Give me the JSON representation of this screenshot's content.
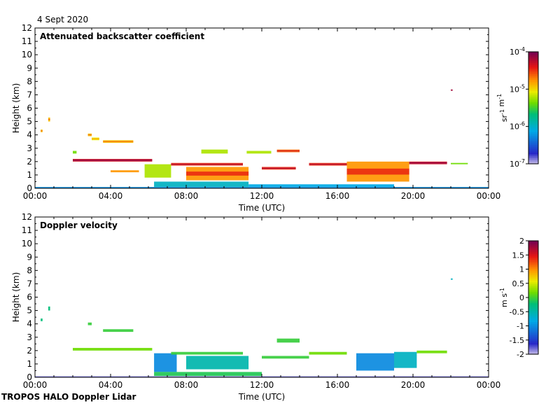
{
  "date": "4 Sept 2020",
  "footer": "TROPOS HALO Doppler Lidar",
  "chart_data": [
    {
      "type": "heatmap",
      "title": "Attenuated backscatter coefficient",
      "xlabel": "Time (UTC)",
      "ylabel": "Height (km)",
      "x_ticks": [
        "00:00",
        "04:00",
        "08:00",
        "12:00",
        "16:00",
        "20:00",
        "00:00"
      ],
      "x_range_hours": [
        0,
        24
      ],
      "y_ticks": [
        0,
        1,
        2,
        3,
        4,
        5,
        6,
        7,
        8,
        9,
        10,
        11,
        12
      ],
      "ylim": [
        0,
        12
      ],
      "colorbar": {
        "scale": "log",
        "range": [
          1e-07,
          0.0001
        ],
        "tick_labels": [
          "10-4",
          "10-5",
          "10-6",
          "10-7"
        ],
        "unit": "sr-1 m-1"
      },
      "features": [
        {
          "t0": 0.0,
          "t1": 24.0,
          "h0": 0.0,
          "h1": 0.1,
          "level": 0.25
        },
        {
          "t0": 0.3,
          "t1": 0.4,
          "h0": 4.2,
          "h1": 4.4,
          "level": 0.7
        },
        {
          "t0": 0.7,
          "t1": 0.8,
          "h0": 5.0,
          "h1": 5.3,
          "level": 0.7
        },
        {
          "t0": 2.0,
          "t1": 2.2,
          "h0": 2.6,
          "h1": 2.8,
          "level": 0.55
        },
        {
          "t0": 2.8,
          "t1": 3.0,
          "h0": 3.9,
          "h1": 4.1,
          "level": 0.7
        },
        {
          "t0": 3.0,
          "t1": 3.4,
          "h0": 3.6,
          "h1": 3.8,
          "level": 0.65
        },
        {
          "t0": 3.6,
          "t1": 5.2,
          "h0": 3.4,
          "h1": 3.6,
          "level": 0.7
        },
        {
          "t0": 2.0,
          "t1": 6.2,
          "h0": 2.0,
          "h1": 2.2,
          "level": 0.9
        },
        {
          "t0": 4.0,
          "t1": 5.5,
          "h0": 1.2,
          "h1": 1.35,
          "level": 0.75
        },
        {
          "t0": 5.8,
          "t1": 7.2,
          "h0": 0.8,
          "h1": 1.8,
          "level": 0.6
        },
        {
          "t0": 6.3,
          "t1": 11.3,
          "h0": 0.1,
          "h1": 0.5,
          "level": 0.35
        },
        {
          "t0": 7.2,
          "t1": 11.0,
          "h0": 1.7,
          "h1": 1.9,
          "level": 0.85
        },
        {
          "t0": 8.0,
          "t1": 11.3,
          "h0": 0.6,
          "h1": 1.6,
          "level": 0.75
        },
        {
          "t0": 8.8,
          "t1": 10.2,
          "h0": 2.6,
          "h1": 2.9,
          "level": 0.6
        },
        {
          "t0": 11.2,
          "t1": 12.5,
          "h0": 2.6,
          "h1": 2.8,
          "level": 0.6
        },
        {
          "t0": 12.8,
          "t1": 14.0,
          "h0": 2.7,
          "h1": 2.9,
          "level": 0.8
        },
        {
          "t0": 12.0,
          "t1": 13.8,
          "h0": 1.4,
          "h1": 1.6,
          "level": 0.85
        },
        {
          "t0": 14.5,
          "t1": 16.5,
          "h0": 1.7,
          "h1": 1.9,
          "level": 0.85
        },
        {
          "t0": 16.5,
          "t1": 19.8,
          "h0": 0.5,
          "h1": 2.0,
          "level": 0.75
        },
        {
          "t0": 19.8,
          "t1": 21.8,
          "h0": 1.8,
          "h1": 2.0,
          "level": 0.9
        },
        {
          "t0": 22.0,
          "t1": 22.9,
          "h0": 1.8,
          "h1": 1.9,
          "level": 0.55
        },
        {
          "t0": 11.3,
          "t1": 19.0,
          "h0": 0.1,
          "h1": 0.3,
          "level": 0.3
        },
        {
          "t0": 22.0,
          "t1": 22.1,
          "h0": 7.3,
          "h1": 7.4,
          "level": 0.95
        }
      ]
    },
    {
      "type": "heatmap",
      "title": "Doppler velocity",
      "xlabel": "Time (UTC)",
      "ylabel": "Height (km)",
      "x_ticks": [
        "00:00",
        "04:00",
        "08:00",
        "12:00",
        "16:00",
        "20:00",
        "00:00"
      ],
      "x_range_hours": [
        0,
        24
      ],
      "y_ticks": [
        0,
        1,
        2,
        3,
        4,
        5,
        6,
        7,
        8,
        9,
        10,
        11,
        12
      ],
      "ylim": [
        0,
        12
      ],
      "colorbar": {
        "scale": "linear",
        "range": [
          -2,
          2
        ],
        "tick_labels": [
          "2",
          "1.5",
          "1",
          "0.5",
          "0",
          "-0.5",
          "-1",
          "-1.5",
          "-2"
        ],
        "unit": "m s-1"
      },
      "features": [
        {
          "t0": 0.0,
          "t1": 24.0,
          "h0": 0.0,
          "h1": 0.08,
          "level": 0.05
        },
        {
          "t0": 0.3,
          "t1": 0.4,
          "h0": 4.2,
          "h1": 4.4,
          "level": 0.45
        },
        {
          "t0": 0.7,
          "t1": 0.8,
          "h0": 5.0,
          "h1": 5.3,
          "level": 0.45
        },
        {
          "t0": 2.8,
          "t1": 3.0,
          "h0": 3.9,
          "h1": 4.1,
          "level": 0.5
        },
        {
          "t0": 3.6,
          "t1": 5.2,
          "h0": 3.4,
          "h1": 3.6,
          "level": 0.5
        },
        {
          "t0": 2.0,
          "t1": 6.2,
          "h0": 2.0,
          "h1": 2.2,
          "level": 0.55
        },
        {
          "t0": 6.3,
          "t1": 7.5,
          "h0": 0.4,
          "h1": 1.8,
          "level": 0.25
        },
        {
          "t0": 7.2,
          "t1": 11.0,
          "h0": 1.7,
          "h1": 1.9,
          "level": 0.5
        },
        {
          "t0": 8.0,
          "t1": 11.3,
          "h0": 0.6,
          "h1": 1.6,
          "level": 0.38
        },
        {
          "t0": 6.3,
          "t1": 12.0,
          "h0": 0.1,
          "h1": 0.4,
          "level": 0.48
        },
        {
          "t0": 12.8,
          "t1": 14.0,
          "h0": 2.6,
          "h1": 2.9,
          "level": 0.5
        },
        {
          "t0": 12.0,
          "t1": 14.5,
          "h0": 1.4,
          "h1": 1.6,
          "level": 0.5
        },
        {
          "t0": 14.5,
          "t1": 16.5,
          "h0": 1.7,
          "h1": 1.9,
          "level": 0.55
        },
        {
          "t0": 17.0,
          "t1": 19.0,
          "h0": 0.5,
          "h1": 1.8,
          "level": 0.25
        },
        {
          "t0": 19.0,
          "t1": 20.2,
          "h0": 0.7,
          "h1": 1.9,
          "level": 0.35
        },
        {
          "t0": 20.2,
          "t1": 21.8,
          "h0": 1.8,
          "h1": 2.0,
          "level": 0.55
        },
        {
          "t0": 22.0,
          "t1": 22.1,
          "h0": 7.3,
          "h1": 7.4,
          "level": 0.35
        }
      ]
    }
  ]
}
